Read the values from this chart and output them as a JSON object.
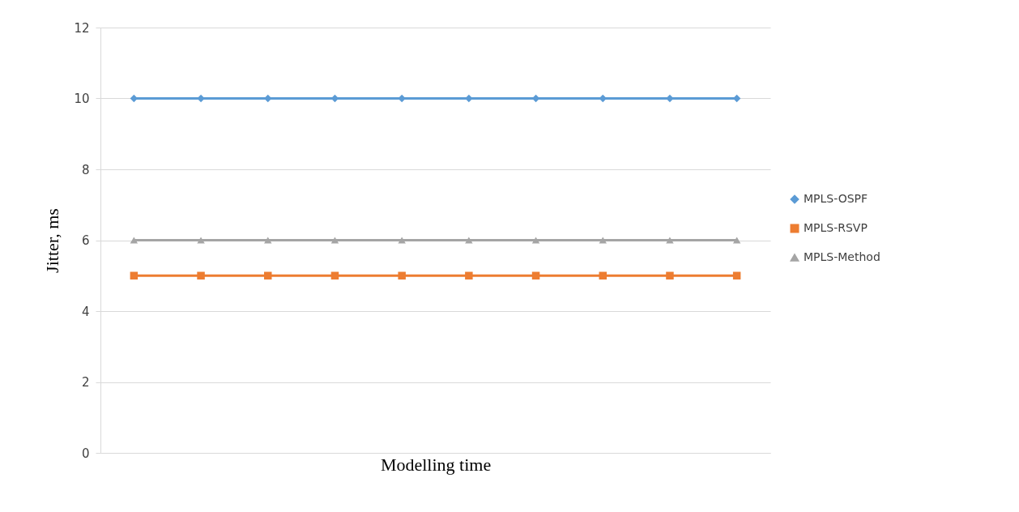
{
  "chart_data": {
    "type": "line",
    "xlabel": "Modelling time",
    "ylabel": "Jitter, ms",
    "categories": [
      null,
      null,
      null,
      null,
      null,
      null,
      null,
      null,
      null,
      null
    ],
    "series": [
      {
        "name": "MPLS-OSPF",
        "color": "#5b9bd5",
        "marker": "diamond",
        "values": [
          10,
          10,
          10,
          10,
          10,
          10,
          10,
          10,
          10,
          10
        ]
      },
      {
        "name": "MPLS-RSVP",
        "color": "#ed7d31",
        "marker": "square",
        "values": [
          5,
          5,
          5,
          5,
          5,
          5,
          5,
          5,
          5,
          5
        ]
      },
      {
        "name": "MPLS-Method",
        "color": "#a5a5a5",
        "marker": "triangle",
        "values": [
          6,
          6,
          6,
          6,
          6,
          6,
          6,
          6,
          6,
          6
        ]
      }
    ],
    "ylim": [
      0,
      12
    ],
    "yticks": [
      0,
      2,
      4,
      6,
      8,
      10,
      12
    ],
    "grid": "y",
    "legend": "right"
  }
}
